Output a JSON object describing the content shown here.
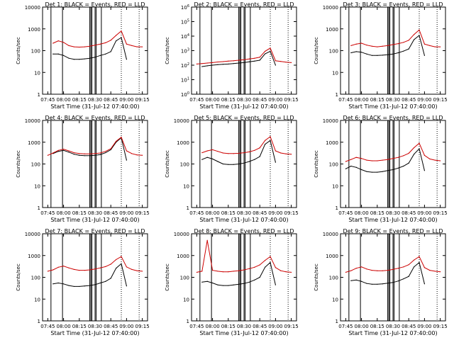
{
  "chart_data": [
    {
      "type": "line",
      "title": "Det 1: BLACK = Events, RED = LLD",
      "xlabel": "",
      "ylabel": "Counts/sec",
      "yscale": "log",
      "ylim": [
        1,
        10000
      ],
      "x": [
        "07:45",
        "07:50",
        "07:55",
        "08:00",
        "08:05",
        "08:10",
        "08:15",
        "08:20",
        "08:25",
        "08:30",
        "08:35",
        "08:40",
        "08:45",
        "08:50",
        "08:55",
        "09:00",
        "09:05",
        "09:10",
        "09:15"
      ],
      "series": [
        {
          "name": "Events",
          "color": "#000000",
          "values": [
            null,
            70,
            70,
            60,
            45,
            40,
            40,
            42,
            45,
            50,
            60,
            70,
            90,
            280,
            400,
            40,
            null,
            null,
            null
          ]
        },
        {
          "name": "LLD",
          "color": "#cc0000",
          "values": [
            null,
            220,
            280,
            240,
            170,
            150,
            145,
            150,
            160,
            180,
            200,
            230,
            300,
            500,
            800,
            200,
            170,
            150,
            150
          ]
        }
      ]
    },
    {
      "type": "line",
      "title": "Det 2: BLACK = Events, RED = LLD",
      "xlabel": "",
      "ylabel": "Counts/sec",
      "yscale": "log",
      "ylim": [
        1,
        1000000
      ],
      "x": [
        "07:45",
        "07:50",
        "07:55",
        "08:00",
        "08:05",
        "08:10",
        "08:15",
        "08:20",
        "08:25",
        "08:30",
        "08:35",
        "08:40",
        "08:45",
        "08:50",
        "08:55",
        "09:00",
        "09:05",
        "09:10",
        "09:15"
      ],
      "series": [
        {
          "name": "Events",
          "color": "#000000",
          "values": [
            null,
            80,
            90,
            100,
            110,
            115,
            120,
            130,
            140,
            150,
            170,
            190,
            220,
            600,
            900,
            100,
            null,
            null,
            null
          ]
        },
        {
          "name": "LLD",
          "color": "#cc0000",
          "values": [
            120,
            130,
            140,
            150,
            165,
            175,
            190,
            200,
            220,
            240,
            270,
            300,
            350,
            900,
            1500,
            200,
            180,
            160,
            150
          ]
        }
      ]
    },
    {
      "type": "line",
      "title": "Det 3: BLACK = Events, RED = LLD",
      "xlabel": "",
      "ylabel": "Counts/sec",
      "yscale": "log",
      "ylim": [
        1,
        10000
      ],
      "x": [
        "07:45",
        "07:50",
        "07:55",
        "08:00",
        "08:05",
        "08:10",
        "08:15",
        "08:20",
        "08:25",
        "08:30",
        "08:35",
        "08:40",
        "08:45",
        "08:50",
        "08:55",
        "09:00",
        "09:05",
        "09:10",
        "09:15"
      ],
      "series": [
        {
          "name": "Events",
          "color": "#000000",
          "values": [
            null,
            80,
            90,
            85,
            70,
            60,
            60,
            62,
            65,
            70,
            80,
            95,
            120,
            320,
            500,
            60,
            null,
            null,
            null
          ]
        },
        {
          "name": "LLD",
          "color": "#cc0000",
          "values": [
            null,
            170,
            200,
            220,
            180,
            160,
            150,
            160,
            170,
            190,
            210,
            240,
            300,
            550,
            900,
            200,
            170,
            150,
            150
          ]
        }
      ]
    },
    {
      "type": "line",
      "title": "Det 4: BLACK = Events, RED = LLD",
      "xlabel": "",
      "ylabel": "Counts/sec",
      "yscale": "log",
      "ylim": [
        1,
        10000
      ],
      "x": [
        "07:45",
        "07:50",
        "07:55",
        "08:00",
        "08:05",
        "08:10",
        "08:15",
        "08:20",
        "08:25",
        "08:30",
        "08:35",
        "08:40",
        "08:45",
        "08:50",
        "08:55",
        "09:00",
        "09:05",
        "09:10",
        "09:15"
      ],
      "series": [
        {
          "name": "Events",
          "color": "#000000",
          "values": [
            null,
            300,
            380,
            420,
            350,
            280,
            250,
            240,
            240,
            250,
            270,
            330,
            450,
            1000,
            1600,
            150,
            null,
            null,
            null
          ]
        },
        {
          "name": "LLD",
          "color": "#cc0000",
          "values": [
            250,
            320,
            420,
            480,
            400,
            330,
            300,
            290,
            290,
            300,
            320,
            380,
            500,
            1100,
            1700,
            400,
            300,
            260,
            250
          ]
        }
      ]
    },
    {
      "type": "line",
      "title": "Det 5: BLACK = Events, RED = LLD",
      "xlabel": "",
      "ylabel": "Counts/sec",
      "yscale": "log",
      "ylim": [
        1,
        10000
      ],
      "x": [
        "07:45",
        "07:50",
        "07:55",
        "08:00",
        "08:05",
        "08:10",
        "08:15",
        "08:20",
        "08:25",
        "08:30",
        "08:35",
        "08:40",
        "08:45",
        "08:50",
        "08:55",
        "09:00",
        "09:05",
        "09:10",
        "09:15"
      ],
      "series": [
        {
          "name": "Events",
          "color": "#000000",
          "values": [
            null,
            160,
            200,
            170,
            130,
            100,
            95,
            95,
            100,
            110,
            130,
            160,
            220,
            800,
            1200,
            120,
            null,
            null,
            null
          ]
        },
        {
          "name": "LLD",
          "color": "#cc0000",
          "values": [
            null,
            330,
            400,
            450,
            380,
            320,
            300,
            300,
            310,
            330,
            360,
            420,
            550,
            1200,
            1800,
            400,
            320,
            290,
            280
          ]
        }
      ]
    },
    {
      "type": "line",
      "title": "Det 6: BLACK = Events, RED = LLD",
      "xlabel": "",
      "ylabel": "Counts/sec",
      "yscale": "log",
      "ylim": [
        1,
        10000
      ],
      "x": [
        "07:45",
        "07:50",
        "07:55",
        "08:00",
        "08:05",
        "08:10",
        "08:15",
        "08:20",
        "08:25",
        "08:30",
        "08:35",
        "08:40",
        "08:45",
        "08:50",
        "08:55",
        "09:00",
        "09:05",
        "09:10",
        "09:15"
      ],
      "series": [
        {
          "name": "Events",
          "color": "#000000",
          "values": [
            60,
            80,
            70,
            55,
            45,
            42,
            42,
            45,
            50,
            55,
            65,
            80,
            110,
            280,
            500,
            50,
            null,
            null,
            null
          ]
        },
        {
          "name": "LLD",
          "color": "#cc0000",
          "values": [
            130,
            160,
            200,
            180,
            150,
            140,
            140,
            150,
            160,
            180,
            200,
            240,
            310,
            560,
            900,
            250,
            170,
            150,
            140
          ]
        }
      ]
    },
    {
      "type": "line",
      "title": "Det 7: BLACK = Events, RED = LLD",
      "xlabel": "",
      "ylabel": "Counts/sec",
      "yscale": "log",
      "ylim": [
        1,
        10000
      ],
      "x": [
        "07:45",
        "07:50",
        "07:55",
        "08:00",
        "08:05",
        "08:10",
        "08:15",
        "08:20",
        "08:25",
        "08:30",
        "08:35",
        "08:40",
        "08:45",
        "08:50",
        "08:55",
        "09:00",
        "09:05",
        "09:10",
        "09:15"
      ],
      "series": [
        {
          "name": "Events",
          "color": "#000000",
          "values": [
            null,
            50,
            55,
            50,
            42,
            38,
            38,
            40,
            42,
            46,
            55,
            65,
            90,
            260,
            420,
            40,
            null,
            null,
            null
          ]
        },
        {
          "name": "LLD",
          "color": "#cc0000",
          "values": [
            190,
            220,
            290,
            330,
            270,
            230,
            210,
            210,
            220,
            240,
            270,
            310,
            400,
            650,
            900,
            300,
            230,
            200,
            190
          ]
        }
      ]
    },
    {
      "type": "line",
      "title": "Det 8: BLACK = Events, RED = LLD",
      "xlabel": "",
      "ylabel": "Counts/sec",
      "yscale": "log",
      "ylim": [
        1,
        10000
      ],
      "x": [
        "07:45",
        "07:50",
        "07:55",
        "08:00",
        "08:05",
        "08:10",
        "08:15",
        "08:20",
        "08:25",
        "08:30",
        "08:35",
        "08:40",
        "08:45",
        "08:50",
        "08:55",
        "09:00",
        "09:05",
        "09:10",
        "09:15"
      ],
      "series": [
        {
          "name": "Events",
          "color": "#000000",
          "values": [
            null,
            60,
            65,
            55,
            45,
            42,
            42,
            45,
            48,
            52,
            60,
            75,
            100,
            290,
            480,
            45,
            null,
            null,
            null
          ]
        },
        {
          "name": "LLD",
          "color": "#cc0000",
          "values": [
            170,
            190,
            5000,
            210,
            190,
            180,
            180,
            190,
            200,
            220,
            250,
            290,
            370,
            600,
            900,
            280,
            200,
            180,
            170
          ]
        }
      ]
    },
    {
      "type": "line",
      "title": "Det 9: BLACK = Events, RED = LLD",
      "xlabel": "",
      "ylabel": "Counts/sec",
      "yscale": "log",
      "ylim": [
        1,
        10000
      ],
      "x": [
        "07:45",
        "07:50",
        "07:55",
        "08:00",
        "08:05",
        "08:10",
        "08:15",
        "08:20",
        "08:25",
        "08:30",
        "08:35",
        "08:40",
        "08:45",
        "08:50",
        "08:55",
        "09:00",
        "09:05",
        "09:10",
        "09:15"
      ],
      "series": [
        {
          "name": "Events",
          "color": "#000000",
          "values": [
            null,
            70,
            75,
            65,
            52,
            48,
            48,
            50,
            54,
            58,
            68,
            85,
            110,
            300,
            480,
            50,
            null,
            null,
            null
          ]
        },
        {
          "name": "LLD",
          "color": "#cc0000",
          "values": [
            170,
            200,
            260,
            300,
            240,
            210,
            200,
            200,
            210,
            230,
            260,
            300,
            380,
            620,
            900,
            280,
            210,
            190,
            180
          ]
        }
      ]
    }
  ],
  "shared_xlabel": "Start Time (31-Jul-12 07:40:00)",
  "xticks": [
    "07:45",
    "08:00",
    "08:15",
    "08:30",
    "08:45",
    "09:00",
    "09:15"
  ],
  "marker_times": [
    "07:48",
    "07:59",
    "08:25",
    "08:26",
    "08:27",
    "08:30",
    "08:31",
    "08:36"
  ],
  "dotted_times": [
    "08:55",
    "09:12"
  ]
}
